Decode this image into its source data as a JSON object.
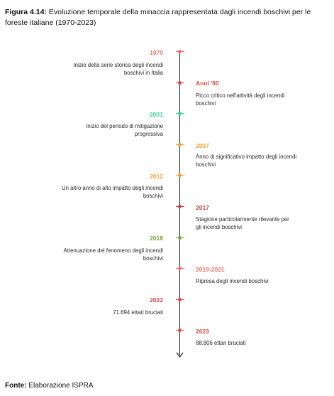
{
  "caption": {
    "lead": "Figura 4.14:",
    "text": " Evoluzione temporale della minaccia rappresentata dagli incendi boschivi per le foreste italiane (1970-2023)"
  },
  "source": {
    "label": "Fonte:",
    "text": " Elaborazione ISPRA"
  },
  "events": [
    {
      "year": "1970",
      "description": "Inizio della serie storica degli incendi boschivi in Italia",
      "color": "#e8756a"
    },
    {
      "year": "Anni '80",
      "description": "Picco critico nell'attività degli incendi boschivi",
      "color": "#d94b4b"
    },
    {
      "year": "2001",
      "description": "Inizio del periodo di mitigazione progressiva",
      "color": "#3ecf8e"
    },
    {
      "year": "2007",
      "description": "Anno di significativo impatto degli incendi boschivi",
      "color": "#f2a13c"
    },
    {
      "year": "2012",
      "description": "Un altro anno di alto impatto degli incendi boschivi",
      "color": "#f2a13c"
    },
    {
      "year": "2017",
      "description": "Stagione particolarmente rilevante per gli incendi boschivi",
      "color": "#b8474a"
    },
    {
      "year": "2018",
      "description": "Attenuazione del fenomeno degli incendi boschivi",
      "color": "#7aa23c"
    },
    {
      "year": "2019-2021",
      "description": "Ripresa degli incendi boschivi",
      "color": "#e8756a"
    },
    {
      "year": "2022",
      "description": "71.694 ettari bruciati",
      "color": "#d94b4b"
    },
    {
      "year": "2023",
      "description": "88.806 ettari bruciati",
      "color": "#d94b4b"
    }
  ]
}
